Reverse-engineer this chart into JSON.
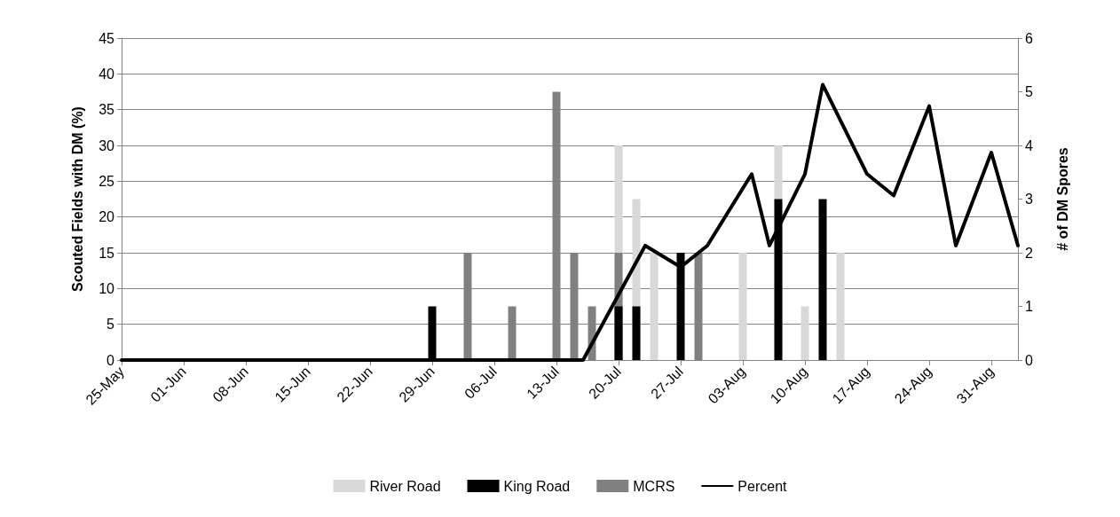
{
  "chart_data": {
    "type": "bar",
    "ylabel": "Scouted Fields with DM (%)",
    "y2label": "# of DM Spores",
    "xlim": [
      "--05-25",
      "--09-03"
    ],
    "xticks": [
      {
        "value": "--05-25",
        "label": "25-May"
      },
      {
        "value": "--06-01",
        "label": "01-Jun"
      },
      {
        "value": "--06-08",
        "label": "08-Jun"
      },
      {
        "value": "--06-15",
        "label": "15-Jun"
      },
      {
        "value": "--06-22",
        "label": "22-Jun"
      },
      {
        "value": "--06-29",
        "label": "29-Jun"
      },
      {
        "value": "--07-06",
        "label": "06-Jul"
      },
      {
        "value": "--07-13",
        "label": "13-Jul"
      },
      {
        "value": "--07-20",
        "label": "20-Jul"
      },
      {
        "value": "--07-27",
        "label": "27-Jul"
      },
      {
        "value": "--08-03",
        "label": "03-Aug"
      },
      {
        "value": "--08-10",
        "label": "10-Aug"
      },
      {
        "value": "--08-17",
        "label": "17-Aug"
      },
      {
        "value": "--08-24",
        "label": "24-Aug"
      },
      {
        "value": "--08-31",
        "label": "31-Aug"
      }
    ],
    "ylim": [
      0,
      45
    ],
    "yticks": [
      0,
      5,
      10,
      15,
      20,
      25,
      30,
      35,
      40,
      45
    ],
    "y2lim": [
      0,
      6
    ],
    "y2ticks": [
      0,
      1,
      2,
      3,
      4,
      5,
      6
    ],
    "grid": "y",
    "legend": "bottom",
    "series": [
      {
        "name": "River Road",
        "axis": "y2",
        "color": "#d9d9d9",
        "x": [
          "--07-20",
          "--07-22",
          "--07-24",
          "--08-03",
          "--08-07",
          "--08-10",
          "--08-14"
        ],
        "values": [
          4,
          3,
          2,
          2,
          4,
          1,
          2
        ]
      },
      {
        "name": "King Road",
        "axis": "y2",
        "color": "#000000",
        "x": [
          "--06-29",
          "--07-20",
          "--07-22",
          "--07-27",
          "--08-07",
          "--08-12"
        ],
        "values": [
          1,
          1,
          1,
          2,
          3,
          3
        ]
      },
      {
        "name": "MCRS",
        "axis": "y2",
        "color": "#808080",
        "x": [
          "--07-03",
          "--07-08",
          "--07-13",
          "--07-15",
          "--07-17",
          "--07-20",
          "--07-29"
        ],
        "values": [
          2,
          1,
          5,
          2,
          1,
          2,
          2
        ]
      },
      {
        "name": "Percent",
        "type": "line",
        "color": "#000000",
        "marker": "none",
        "line_style": "solid",
        "x": [
          "--05-25",
          "--07-16",
          "--07-23",
          "--07-27",
          "--07-30",
          "--08-04",
          "--08-06",
          "--08-10",
          "--08-12",
          "--08-17",
          "--08-20",
          "--08-24",
          "--08-27",
          "--08-31",
          "--09-03"
        ],
        "values": [
          0,
          0,
          16,
          13,
          16,
          26,
          16,
          26,
          38.5,
          26,
          23,
          35.5,
          16,
          29,
          16
        ]
      }
    ]
  }
}
